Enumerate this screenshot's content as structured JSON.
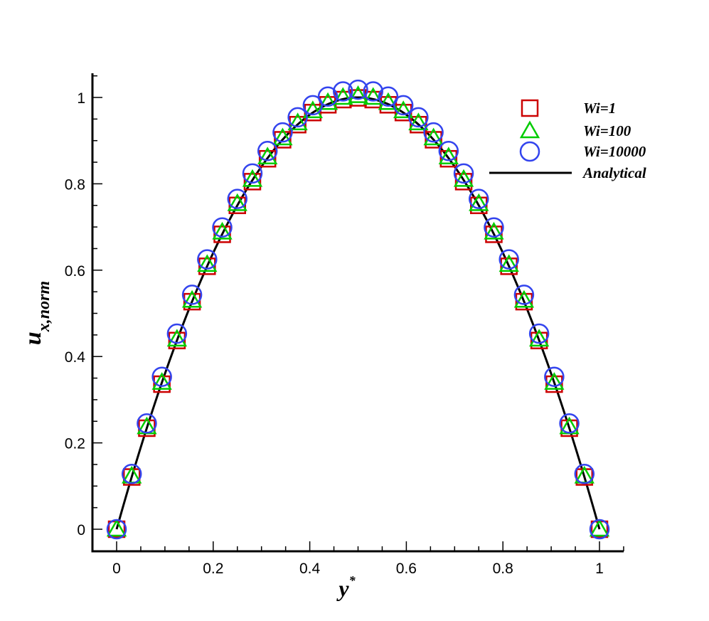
{
  "chart_data": {
    "type": "scatter",
    "xlabel": "y",
    "xlabel_sup": "*",
    "ylabel": "u",
    "ylabel_sub": "x,norm",
    "xlim": [
      -0.05,
      1.05
    ],
    "ylim": [
      -0.05,
      1.05
    ],
    "xticks": [
      0,
      0.2,
      0.4,
      0.6,
      0.8,
      1
    ],
    "yticks": [
      0,
      0.2,
      0.4,
      0.6,
      0.8,
      1
    ],
    "xtick_labels": [
      "0",
      "0.2",
      "0.4",
      "0.6",
      "0.8",
      "1"
    ],
    "ytick_labels": [
      "0",
      "0.2",
      "0.4",
      "0.6",
      "0.8",
      "1"
    ],
    "grid": false,
    "legend_position": "top-right",
    "x": [
      0,
      0.03125,
      0.0625,
      0.09375,
      0.125,
      0.15625,
      0.1875,
      0.21875,
      0.25,
      0.28125,
      0.3125,
      0.34375,
      0.375,
      0.40625,
      0.4375,
      0.46875,
      0.5,
      0.53125,
      0.5625,
      0.59375,
      0.625,
      0.65625,
      0.6875,
      0.71875,
      0.75,
      0.78125,
      0.8125,
      0.84375,
      0.875,
      0.90625,
      0.9375,
      0.96875,
      1
    ],
    "series": [
      {
        "name": "Wi=1",
        "marker": "square",
        "color": "#cc0000",
        "y": [
          0,
          0.121,
          0.234,
          0.336,
          0.437,
          0.527,
          0.609,
          0.683,
          0.75,
          0.805,
          0.858,
          0.902,
          0.937,
          0.965,
          0.983,
          0.995,
          0.999,
          0.995,
          0.983,
          0.965,
          0.937,
          0.902,
          0.858,
          0.805,
          0.75,
          0.683,
          0.609,
          0.527,
          0.437,
          0.336,
          0.234,
          0.121,
          0
        ]
      },
      {
        "name": "Wi=100",
        "marker": "triangle",
        "color": "#00cc00",
        "y": [
          0,
          0.123,
          0.237,
          0.34,
          0.44,
          0.53,
          0.613,
          0.688,
          0.754,
          0.81,
          0.862,
          0.906,
          0.941,
          0.969,
          0.988,
          1.0,
          1.004,
          1.0,
          0.988,
          0.969,
          0.941,
          0.906,
          0.862,
          0.81,
          0.754,
          0.688,
          0.613,
          0.53,
          0.44,
          0.34,
          0.237,
          0.123,
          0
        ]
      },
      {
        "name": "Wi=10000",
        "marker": "circle",
        "color": "#3344ee",
        "y": [
          0,
          0.128,
          0.245,
          0.353,
          0.453,
          0.543,
          0.625,
          0.699,
          0.765,
          0.824,
          0.876,
          0.919,
          0.954,
          0.982,
          1.002,
          1.014,
          1.018,
          1.014,
          1.002,
          0.982,
          0.954,
          0.919,
          0.876,
          0.824,
          0.765,
          0.699,
          0.625,
          0.543,
          0.453,
          0.353,
          0.245,
          0.128,
          0
        ]
      },
      {
        "name": "Analytical",
        "marker": "line",
        "color": "#000000",
        "function": "4*x*(1-x)"
      }
    ]
  }
}
